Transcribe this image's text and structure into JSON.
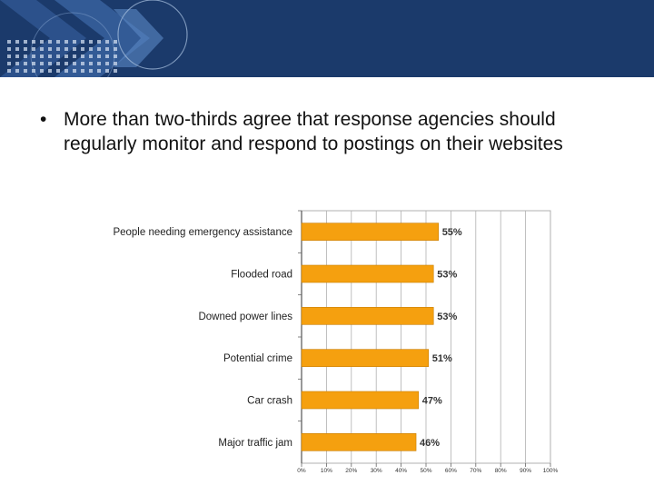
{
  "slide": {
    "bullet": "More than two-thirds agree that response agencies should regularly monitor and respond to postings on their websites"
  },
  "colors": {
    "banner": "#1b3a6b",
    "bar": "#f5a00f",
    "bar_edge": "#c97d00",
    "grid": "#b0b0b0",
    "text": "#111111"
  },
  "chart_data": {
    "type": "bar",
    "orientation": "horizontal",
    "categories": [
      "People needing emergency assistance",
      "Flooded road",
      "Downed power lines",
      "Potential crime",
      "Car crash",
      "Major traffic jam"
    ],
    "values": [
      55,
      53,
      53,
      51,
      47,
      46
    ],
    "value_labels": [
      "55%",
      "53%",
      "53%",
      "51%",
      "47%",
      "46%"
    ],
    "xlim": [
      0,
      100
    ],
    "ticks": [
      "0%",
      "10%",
      "20%",
      "30%",
      "40%",
      "50%",
      "60%",
      "70%",
      "80%",
      "90%",
      "100%"
    ],
    "grid": true,
    "title": "",
    "xlabel": "",
    "ylabel": ""
  }
}
